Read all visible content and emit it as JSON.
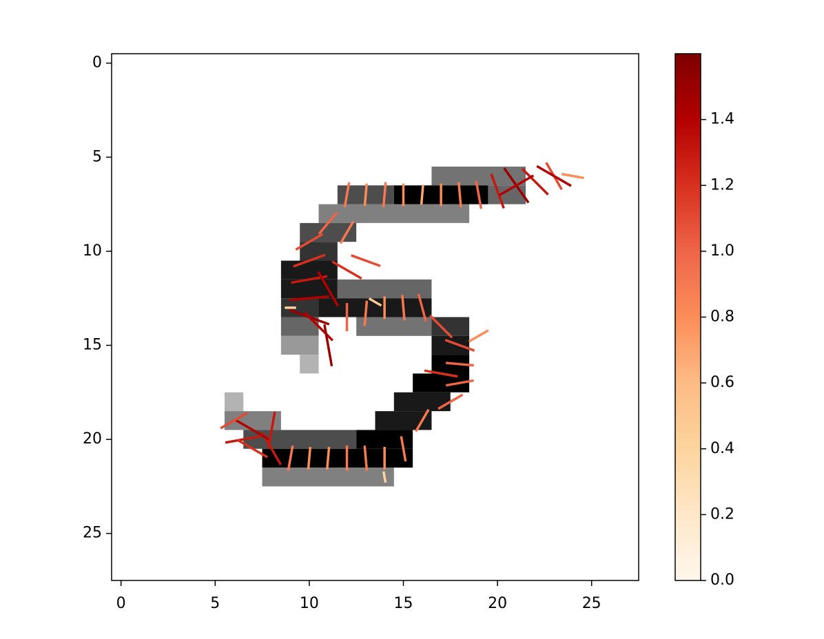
{
  "chart_data": {
    "type": "quiver",
    "xlim": [
      -0.5,
      27.5
    ],
    "ylim": [
      27.5,
      -0.5
    ],
    "xticks": [
      0,
      5,
      10,
      15,
      20,
      25
    ],
    "yticks": [
      0,
      5,
      10,
      15,
      20,
      25
    ],
    "image_runs": [
      [
        6,
        17,
        21,
        0.55
      ],
      [
        7,
        12,
        14,
        0.7
      ],
      [
        7,
        15,
        19,
        1.0
      ],
      [
        7,
        20,
        21,
        0.6
      ],
      [
        8,
        11,
        18,
        0.5
      ],
      [
        9,
        10,
        12,
        0.7
      ],
      [
        10,
        10,
        11,
        0.8
      ],
      [
        11,
        9,
        11,
        0.9
      ],
      [
        12,
        9,
        11,
        0.9
      ],
      [
        12,
        12,
        16,
        0.6
      ],
      [
        13,
        9,
        10,
        0.8
      ],
      [
        13,
        11,
        16,
        0.9
      ],
      [
        14,
        9,
        10,
        0.6
      ],
      [
        14,
        13,
        16,
        0.55
      ],
      [
        14,
        17,
        18,
        0.8
      ],
      [
        15,
        9,
        10,
        0.4
      ],
      [
        15,
        17,
        18,
        0.9
      ],
      [
        16,
        10,
        10,
        0.3
      ],
      [
        16,
        17,
        18,
        1.0
      ],
      [
        17,
        16,
        18,
        1.0
      ],
      [
        18,
        6,
        6,
        0.3
      ],
      [
        18,
        15,
        17,
        0.9
      ],
      [
        19,
        6,
        8,
        0.5
      ],
      [
        19,
        14,
        16,
        0.9
      ],
      [
        20,
        7,
        12,
        0.7
      ],
      [
        20,
        13,
        15,
        1.0
      ],
      [
        21,
        8,
        15,
        1.0
      ],
      [
        22,
        8,
        14,
        0.5
      ]
    ],
    "segments": [
      [
        12,
        7,
        100,
        0.9
      ],
      [
        13,
        7,
        95,
        0.8
      ],
      [
        14,
        7,
        95,
        0.9
      ],
      [
        15,
        7,
        90,
        0.8
      ],
      [
        16,
        7,
        95,
        0.7
      ],
      [
        17,
        7,
        90,
        0.8
      ],
      [
        18,
        7,
        85,
        0.9
      ],
      [
        19,
        7,
        80,
        1.0
      ],
      [
        20,
        6.8,
        70,
        1.3
      ],
      [
        21,
        6.5,
        55,
        1.5
      ],
      [
        22,
        6.3,
        45,
        1.3
      ],
      [
        23,
        6,
        60,
        1.1
      ],
      [
        24,
        6,
        10,
        0.8
      ],
      [
        21,
        6.5,
        150,
        1.4
      ],
      [
        23,
        6,
        30,
        1.4
      ],
      [
        11,
        8.5,
        130,
        1.0
      ],
      [
        10,
        9.5,
        150,
        1.1
      ],
      [
        10,
        10.5,
        160,
        1.2
      ],
      [
        12,
        9,
        120,
        0.9
      ],
      [
        10,
        11.5,
        170,
        1.3
      ],
      [
        10,
        12.5,
        175,
        1.4
      ],
      [
        10,
        13.5,
        20,
        1.5
      ],
      [
        10.5,
        14,
        45,
        1.4
      ],
      [
        11,
        15,
        80,
        1.5
      ],
      [
        9,
        13,
        0,
        0.4
      ],
      [
        11,
        12,
        60,
        1.4
      ],
      [
        12,
        11,
        30,
        1.2
      ],
      [
        13,
        10.5,
        20,
        1.1
      ],
      [
        12,
        13.5,
        90,
        1.0
      ],
      [
        13,
        13.3,
        95,
        0.9
      ],
      [
        14,
        13,
        90,
        0.8
      ],
      [
        15,
        13,
        85,
        0.9
      ],
      [
        16,
        13,
        75,
        1.0
      ],
      [
        13.5,
        12.7,
        30,
        0.5
      ],
      [
        17,
        14,
        45,
        1.1
      ],
      [
        18,
        15,
        20,
        1.1
      ],
      [
        18,
        16,
        5,
        1.0
      ],
      [
        18,
        17,
        170,
        1.0
      ],
      [
        17.5,
        18,
        150,
        1.0
      ],
      [
        16,
        19,
        120,
        0.9
      ],
      [
        19,
        14.5,
        150,
        0.8
      ],
      [
        17,
        16.5,
        10,
        1.2
      ],
      [
        15,
        20.5,
        80,
        0.9
      ],
      [
        14,
        21,
        90,
        0.8
      ],
      [
        13,
        21,
        85,
        0.9
      ],
      [
        12,
        21,
        90,
        0.9
      ],
      [
        11,
        21,
        95,
        0.8
      ],
      [
        10,
        21,
        95,
        0.8
      ],
      [
        9,
        21,
        100,
        0.9
      ],
      [
        14,
        22,
        80,
        0.4
      ],
      [
        8,
        20.5,
        60,
        1.3
      ],
      [
        7,
        19.5,
        30,
        1.4
      ],
      [
        6,
        19,
        150,
        1.1
      ],
      [
        6.5,
        20,
        170,
        1.3
      ],
      [
        7,
        20.5,
        30,
        1.2
      ],
      [
        8,
        19.5,
        100,
        1.3
      ]
    ],
    "clim": [
      0,
      1.6
    ],
    "colormap": [
      "#fff7ec",
      "#fee8c8",
      "#fdd49e",
      "#fdbb84",
      "#fc8d59",
      "#ef6548",
      "#d7301f",
      "#b30000",
      "#7f0000"
    ],
    "cticks": [
      {
        "value": 0,
        "label": "0.0"
      },
      0.2,
      0.4,
      0.6,
      0.8,
      {
        "value": 1,
        "label": "1.0"
      },
      1.2,
      1.4
    ]
  }
}
